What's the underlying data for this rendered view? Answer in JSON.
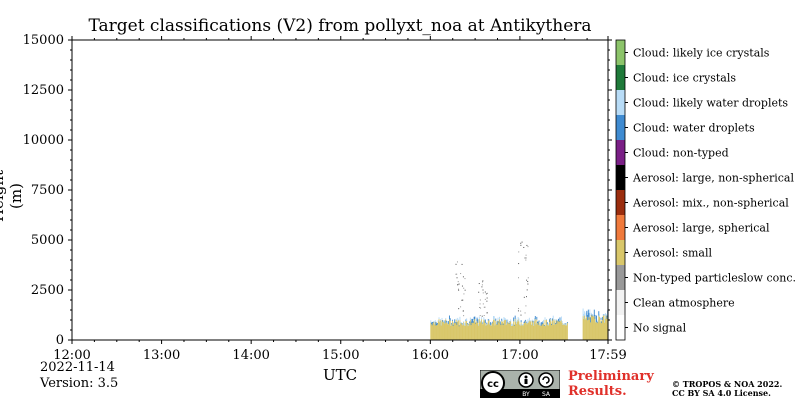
{
  "chart_data": {
    "type": "heatmap",
    "title": "Target classifications (V2) from pollyxt_noa at Antikythera",
    "xlabel": "UTC",
    "ylabel": "Height (m)",
    "x_ticks": [
      "12:00",
      "13:00",
      "14:00",
      "15:00",
      "16:00",
      "17:00",
      "17:59"
    ],
    "x_range": [
      "12:00",
      "17:59"
    ],
    "y_ticks": [
      0,
      2500,
      5000,
      7500,
      10000,
      12500,
      15000
    ],
    "ylim": [
      0,
      15000
    ],
    "legend_placement": "right colorbar",
    "classes": [
      {
        "label": "No signal",
        "color": "#ffffff"
      },
      {
        "label": "Clean atmosphere",
        "color": "#f2f2f2"
      },
      {
        "label": "Non-typed particleslow conc.",
        "color": "#999999"
      },
      {
        "label": "Aerosol: small",
        "color": "#d9c76a"
      },
      {
        "label": "Aerosol: large, spherical",
        "color": "#f07a3c"
      },
      {
        "label": "Aerosol: mix., non-spherical",
        "color": "#9b2d0e"
      },
      {
        "label": "Aerosol: large, non-spherical",
        "color": "#000000"
      },
      {
        "label": "Cloud: non-typed",
        "color": "#7a1f86"
      },
      {
        "label": "Cloud: water droplets",
        "color": "#3f8bd1"
      },
      {
        "label": "Cloud: likely water droplets",
        "color": "#b8dcf7"
      },
      {
        "label": "Cloud: ice crystals",
        "color": "#1f7a3a"
      },
      {
        "label": "Cloud: likely ice crystals",
        "color": "#8cc46a"
      }
    ],
    "data_segments": [
      {
        "start": "16:00",
        "end": "17:32",
        "dominant_class": "Aerosol: small",
        "top_height_m": 1000,
        "cloud_top_m": 1200
      },
      {
        "start": "17:42",
        "end": "17:59",
        "dominant_class": "Aerosol: small",
        "top_height_m": 1200,
        "cloud_top_m": 1600
      }
    ],
    "sparse_returns": [
      {
        "time": "16:20",
        "max_height_m": 4000
      },
      {
        "time": "16:35",
        "max_height_m": 3000
      },
      {
        "time": "17:02",
        "max_height_m": 5000
      }
    ]
  },
  "footer": {
    "date": "2022-11-14",
    "version": "Version: 3.5",
    "preliminary_line1": "Preliminary",
    "preliminary_line2": "Results.",
    "copyright_line1": "© TROPOS & NOA 2022.",
    "copyright_line2": "CC BY SA 4.0 License."
  },
  "license_badge": {
    "by": "BY",
    "sa": "SA"
  }
}
